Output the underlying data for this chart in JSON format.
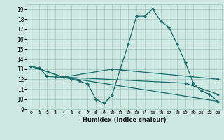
{
  "title": "",
  "xlabel": "Humidex (Indice chaleur)",
  "bg_color": "#cce8e0",
  "grid_color": "#aacfc8",
  "line_color": "#1a6b6b",
  "xlim": [
    -0.5,
    23.5
  ],
  "ylim": [
    9,
    19.5
  ],
  "yticks": [
    9,
    10,
    11,
    12,
    13,
    14,
    15,
    16,
    17,
    18,
    19
  ],
  "xticks": [
    0,
    1,
    2,
    3,
    4,
    5,
    6,
    7,
    8,
    9,
    10,
    11,
    12,
    13,
    14,
    15,
    16,
    17,
    18,
    19,
    20,
    21,
    22,
    23
  ],
  "lines": [
    {
      "x": [
        0,
        1,
        2,
        3,
        4,
        5,
        6,
        7,
        8,
        9,
        10,
        11,
        12,
        13,
        14,
        15,
        16,
        17,
        18,
        19,
        20,
        21,
        22,
        23
      ],
      "y": [
        13.3,
        13.1,
        12.3,
        12.2,
        12.2,
        12.0,
        11.8,
        11.5,
        10.0,
        9.6,
        10.4,
        13.0,
        15.5,
        18.3,
        18.3,
        19.0,
        17.8,
        17.2,
        15.5,
        13.7,
        11.6,
        10.8,
        10.5,
        9.8
      ]
    },
    {
      "x": [
        0,
        4,
        23
      ],
      "y": [
        13.3,
        12.2,
        9.8
      ]
    },
    {
      "x": [
        0,
        4,
        19,
        23
      ],
      "y": [
        13.3,
        12.2,
        11.6,
        10.5
      ]
    },
    {
      "x": [
        0,
        4,
        10,
        23
      ],
      "y": [
        13.3,
        12.2,
        13.0,
        12.0
      ]
    }
  ]
}
